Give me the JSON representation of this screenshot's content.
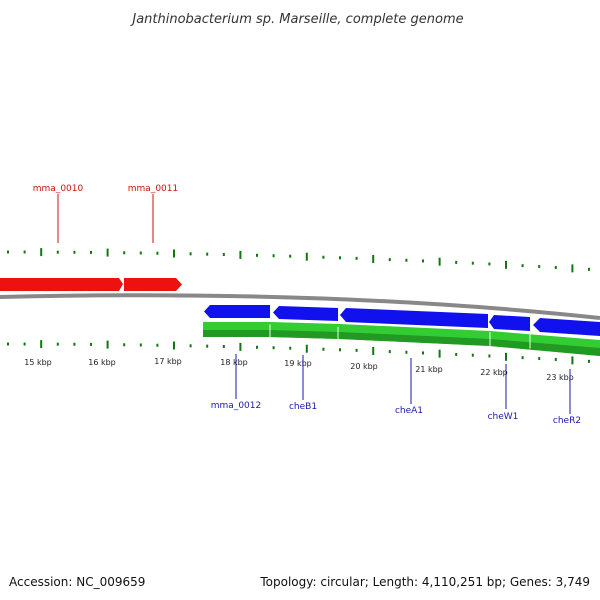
{
  "title": "Janthinobacterium sp. Marseille, complete genome",
  "footer": {
    "accession": "Accession: NC_009659",
    "summary": "Topology: circular; Length: 4,110,251 bp; Genes: 3,749"
  },
  "colors": {
    "forward_gene": "#ee1111",
    "reverse_gene": "#1111ee",
    "cds_track": "#33cc33",
    "cds_track_dark": "#229922",
    "backbone": "#888888",
    "tick": "#117711",
    "forward_label": "#cc1111",
    "reverse_label": "#1a1aaa"
  },
  "scale": {
    "unit": "kbp",
    "labels": [
      "15 kbp",
      "16 kbp",
      "17 kbp",
      "18 kbp",
      "19 kbp",
      "20 kbp",
      "21 kbp",
      "22 kbp",
      "23 kbp"
    ]
  },
  "genes_forward": [
    {
      "name": "mma_0010"
    },
    {
      "name": "mma_0011"
    }
  ],
  "genes_reverse": [
    {
      "name": "mma_0012"
    },
    {
      "name": "cheB1"
    },
    {
      "name": "cheA1"
    },
    {
      "name": "cheW1"
    },
    {
      "name": "cheR2"
    }
  ]
}
